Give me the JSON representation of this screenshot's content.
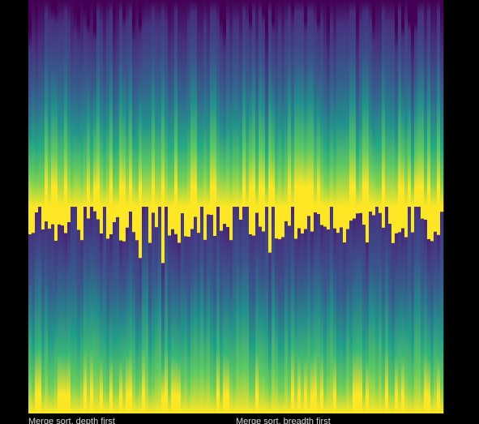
{
  "labels": [
    "Merge sort, depth first",
    "Merge sort, breadth first"
  ]
}
